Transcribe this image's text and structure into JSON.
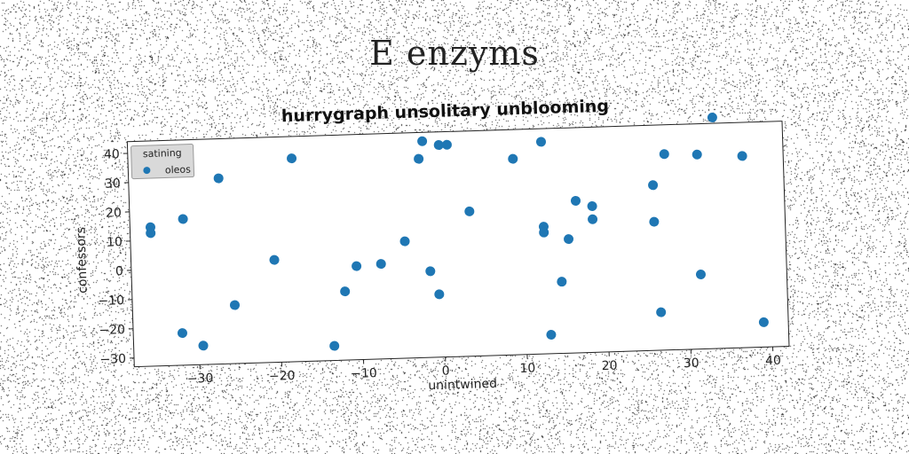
{
  "page": {
    "heading": "E enzyms"
  },
  "chart_data": {
    "type": "scatter",
    "title": "hurrygraph unsolitary unblooming",
    "xlabel": "unintwined",
    "ylabel": "confessors",
    "xlim": [
      -38,
      42
    ],
    "ylim": [
      -33,
      44
    ],
    "xticks": [
      -30,
      -20,
      -10,
      0,
      10,
      20,
      30,
      40
    ],
    "xtick_labels": [
      "−30",
      "−20",
      "−10",
      "0",
      "10",
      "20",
      "30",
      "40"
    ],
    "yticks": [
      -30,
      -20,
      -10,
      0,
      10,
      20,
      30,
      40
    ],
    "ytick_labels": [
      "−30",
      "−20",
      "−10",
      "0",
      "10",
      "20",
      "30",
      "40"
    ],
    "grid": false,
    "legend": {
      "title": "satining",
      "placement": "top-left"
    },
    "series": [
      {
        "name": "oleos",
        "color": "#1f77b4",
        "points": [
          [
            -35.5,
            14.5
          ],
          [
            -35.5,
            12.5
          ],
          [
            -31.5,
            17
          ],
          [
            -27,
            30.5
          ],
          [
            -18,
            36.5
          ],
          [
            -20.5,
            2
          ],
          [
            -25.5,
            -13
          ],
          [
            -32,
            -22
          ],
          [
            -29.5,
            -26.5
          ],
          [
            -13.5,
            -28
          ],
          [
            -12,
            -9.5
          ],
          [
            -10.5,
            -1
          ],
          [
            -7.5,
            -0.5
          ],
          [
            -4.5,
            7
          ],
          [
            -2.5,
            35
          ],
          [
            -2,
            41
          ],
          [
            0,
            39.5
          ],
          [
            1,
            39.5
          ],
          [
            -1.5,
            -3.5
          ],
          [
            -0.5,
            -11.5
          ],
          [
            3.5,
            16.5
          ],
          [
            9,
            34
          ],
          [
            12.5,
            39.5
          ],
          [
            12.5,
            10.5
          ],
          [
            12.5,
            8.5
          ],
          [
            15.5,
            6
          ],
          [
            16.5,
            19
          ],
          [
            18.5,
            17
          ],
          [
            18.5,
            12.5
          ],
          [
            14.5,
            -8.5
          ],
          [
            13,
            -26.5
          ],
          [
            26,
            23.5
          ],
          [
            26,
            11
          ],
          [
            27.5,
            34
          ],
          [
            31.5,
            33.5
          ],
          [
            33.5,
            46
          ],
          [
            37,
            32.5
          ],
          [
            31.5,
            -7.5
          ],
          [
            26.5,
            -20
          ],
          [
            39,
            -24.5
          ]
        ]
      }
    ]
  }
}
